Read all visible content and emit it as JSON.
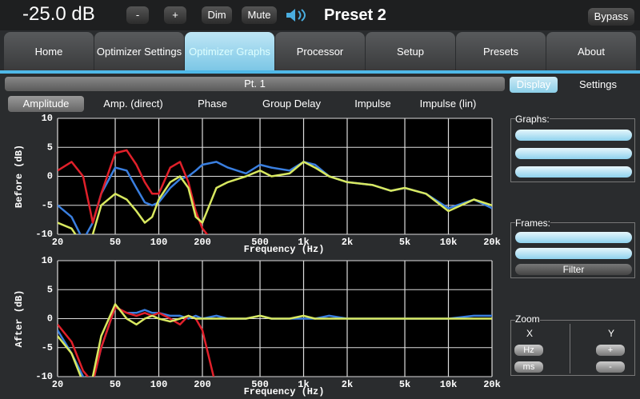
{
  "top_bar": {
    "volume": "-25.0 dB",
    "buttons": [
      "-",
      "+",
      "Dim",
      "Mute"
    ],
    "preset": "Preset 2",
    "bypass": "Bypass"
  },
  "tabs": [
    "Home",
    "Optimizer Settings",
    "Optimizer Graphs",
    "Processor",
    "Setup",
    "Presets",
    "About"
  ],
  "panel_title": "Pt. 1",
  "subtabs": [
    "Amplitude",
    "Amp. (direct)",
    "Phase",
    "Group Delay",
    "Impulse",
    "Impulse (lin)"
  ],
  "side_tabs": [
    "Display",
    "Settings"
  ],
  "graphs_label": "Graphs:",
  "frames_label": "Frames:",
  "filter_button": "Filter",
  "zoom": {
    "title": "Zoom",
    "x_label": "X",
    "y_label": "Y",
    "x_buttons": [
      "Hz",
      "ms"
    ],
    "y_buttons": [
      "+",
      "-"
    ]
  },
  "chart_data": [
    {
      "type": "line",
      "ylabel": "Before (dB)",
      "xlabel": "Frequency (Hz)",
      "xscale": "log",
      "grid": true,
      "x": [
        20,
        25,
        30,
        35,
        40,
        50,
        60,
        70,
        80,
        90,
        100,
        120,
        140,
        160,
        180,
        200,
        250,
        300,
        400,
        500,
        600,
        800,
        1000,
        1200,
        1500,
        2000,
        3000,
        4000,
        5000,
        7000,
        10000,
        15000,
        20000
      ],
      "xlim": [
        20,
        20000
      ],
      "ylim": [
        -10,
        10
      ],
      "xticks": [
        20,
        50,
        100,
        200,
        500,
        {
          "value": 1000,
          "label": "1k"
        },
        {
          "value": 2000,
          "label": "2k"
        },
        {
          "value": 5000,
          "label": "5k"
        },
        {
          "value": 10000,
          "label": "10k"
        },
        {
          "value": 20000,
          "label": "20k"
        }
      ],
      "yticks": [
        10,
        5,
        0,
        -5,
        -10
      ],
      "series": [
        {
          "color": "#3a7fe0",
          "values": [
            -5,
            -7,
            -11,
            -8,
            -3,
            1.5,
            1,
            -2,
            -4.5,
            -5,
            -4.5,
            -2,
            -0.5,
            0,
            1,
            2,
            2.5,
            1.5,
            0.5,
            2,
            1.5,
            1,
            2.5,
            2,
            0,
            -1,
            -1.5,
            -2.5,
            -2,
            -3,
            -5.5,
            -4,
            -5.5
          ]
        },
        {
          "color": "#e0202a",
          "values": [
            1,
            2.5,
            0,
            -8,
            -3,
            4,
            4.5,
            2,
            -1,
            -3,
            -3,
            1.5,
            2.5,
            -1,
            -6,
            -9,
            -12,
            null,
            null,
            null,
            null,
            null,
            null,
            null,
            null,
            null,
            null,
            null,
            null,
            null,
            null,
            null,
            null
          ]
        },
        {
          "color": "#d8e860",
          "values": [
            -8,
            -9,
            -12,
            -10,
            -5,
            -3,
            -4,
            -6,
            -8,
            -7,
            -4,
            -1,
            0,
            -2,
            -7,
            -8,
            -2,
            -1,
            0,
            1,
            0,
            0.5,
            2.5,
            1.5,
            0,
            -1,
            -1.5,
            -2.5,
            -2,
            -3,
            -6,
            -4,
            -5
          ]
        }
      ]
    },
    {
      "type": "line",
      "ylabel": "After (dB)",
      "xlabel": "Frequency (Hz)",
      "xscale": "log",
      "grid": true,
      "x": [
        20,
        25,
        30,
        35,
        40,
        50,
        60,
        70,
        80,
        90,
        100,
        120,
        140,
        160,
        180,
        200,
        250,
        300,
        400,
        500,
        600,
        800,
        1000,
        1200,
        1500,
        2000,
        3000,
        4000,
        5000,
        7000,
        10000,
        15000,
        20000
      ],
      "xlim": [
        20,
        20000
      ],
      "ylim": [
        -10,
        10
      ],
      "xticks": [
        20,
        50,
        100,
        200,
        500,
        {
          "value": 1000,
          "label": "1k"
        },
        {
          "value": 2000,
          "label": "2k"
        },
        {
          "value": 5000,
          "label": "5k"
        },
        {
          "value": 10000,
          "label": "10k"
        },
        {
          "value": 20000,
          "label": "20k"
        }
      ],
      "yticks": [
        10,
        5,
        0,
        -5,
        -10
      ],
      "series": [
        {
          "color": "#3a7fe0",
          "values": [
            -2,
            -6,
            -10,
            -11,
            -5,
            2,
            1,
            1,
            1.5,
            1,
            1,
            0.5,
            0.5,
            0,
            0.5,
            0,
            0.5,
            0,
            0,
            0.5,
            0,
            0,
            0,
            0,
            0.5,
            0,
            0,
            0,
            0,
            0,
            0,
            0.5,
            0.5
          ]
        },
        {
          "color": "#e0202a",
          "values": [
            -1,
            -4,
            -9,
            -11,
            -5,
            2,
            1,
            0.5,
            1,
            0.5,
            1,
            0,
            -1,
            0.5,
            0,
            -2,
            -12,
            null,
            null,
            null,
            null,
            null,
            null,
            null,
            null,
            null,
            null,
            null,
            null,
            null,
            null,
            null,
            null
          ]
        },
        {
          "color": "#d8e860",
          "values": [
            -3,
            -6,
            -11,
            -10,
            -3,
            2.5,
            0,
            -1,
            0,
            0.5,
            0,
            -0.5,
            0,
            0.5,
            0,
            0,
            0,
            0,
            0,
            0.5,
            0,
            0,
            0.5,
            0,
            0,
            0,
            0,
            0,
            0,
            0,
            0,
            0,
            0
          ]
        }
      ]
    }
  ]
}
